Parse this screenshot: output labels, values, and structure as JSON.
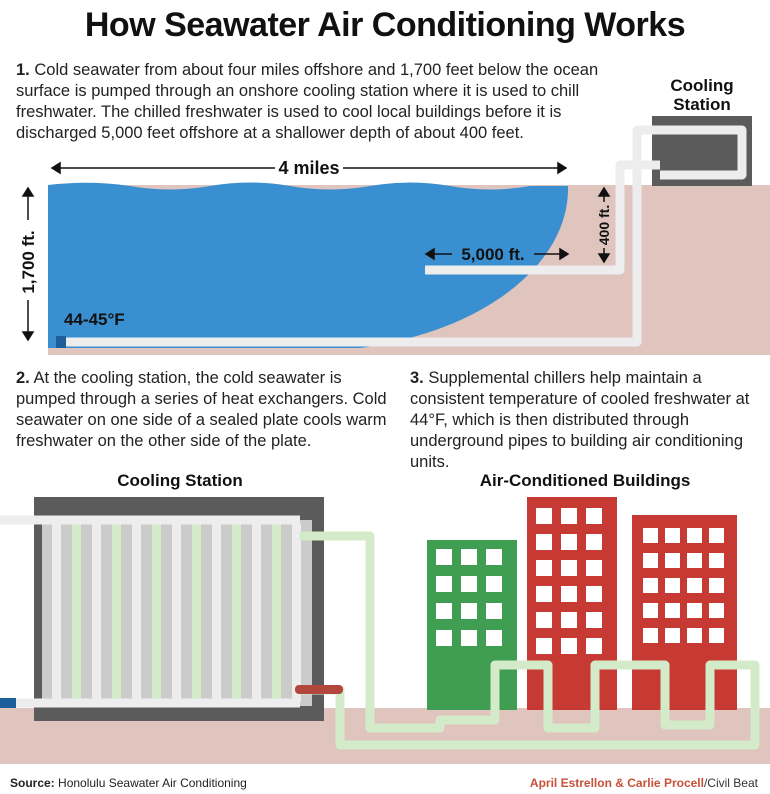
{
  "title": "How Seawater Air Conditioning Works",
  "step1": {
    "num": "1.",
    "text": "Cold seawater from about four miles offshore and 1,700 feet below the ocean surface is pumped through an onshore cooling station where it is used to chill freshwater. The chilled freshwater is used to cool local buildings before it is discharged 5,000 feet offshore at a shallower depth of about 400 feet."
  },
  "step2": {
    "num": "2.",
    "text": "At the cooling station, the cold seawater is pumped through a series of heat exchangers. Cold seawater on one side of a sealed plate cools warm freshwater on the other side of the plate."
  },
  "step3": {
    "num": "3.",
    "text": "Supplemental chillers help maintain a consistent temperature of cooled freshwater at 44°F, which is then distributed through underground pipes to building air conditioning units."
  },
  "labels": {
    "cooling_station_top_line1": "Cooling",
    "cooling_station_top_line2": "Station",
    "distance_4_miles": "4 miles",
    "depth_1700": "1,700 ft.",
    "distance_5000": "5,000 ft.",
    "depth_400": "400 ft.",
    "temperature": "44-45°F",
    "cooling_station_bottom": "Cooling Station",
    "buildings": "Air-Conditioned Buildings"
  },
  "footer": {
    "source_label": "Source:",
    "source_text": " Honolulu Seawater Air Conditioning",
    "credit_authors": "April Estrellon & Carlie Procell",
    "credit_org": "/Civil Beat"
  },
  "colors": {
    "ocean": "#3a8fd1",
    "land": "#e0c4be",
    "station": "#5b5b5b",
    "pipe_cold": "#ededed",
    "pipe_fresh": "#d4ebc9",
    "building_green": "#3f9e51",
    "building_red": "#c73a33",
    "window": "#ffffff"
  }
}
